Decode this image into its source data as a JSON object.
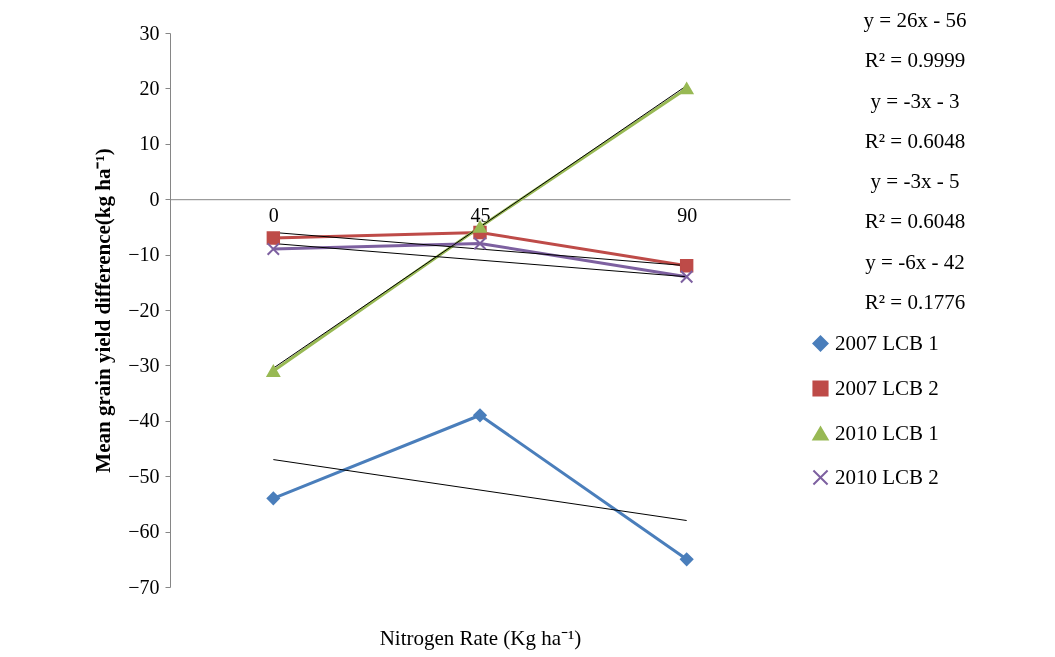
{
  "chart_data": {
    "type": "line",
    "xlabel": "Nitrogen Rate (Kg ha⁻¹)",
    "ylabel": "Mean grain yield difference(kg ha⁻¹)",
    "categories": [
      "0",
      "45",
      "90"
    ],
    "ylim": [
      -70,
      30
    ],
    "yticks": [
      -70,
      -60,
      -50,
      -40,
      -30,
      -20,
      -10,
      0,
      10,
      20,
      30
    ],
    "grid": false,
    "legend": "right",
    "series": [
      {
        "name": "2007 LCB 1",
        "color": "#4a7ebb",
        "marker": "diamond",
        "values": [
          -54,
          -39,
          -65
        ]
      },
      {
        "name": "2007 LCB 2",
        "color": "#be4b48",
        "marker": "square",
        "values": [
          -7,
          -6,
          -12
        ]
      },
      {
        "name": "2010 LCB 1",
        "color": "#98b954",
        "marker": "triangle",
        "values": [
          -31,
          -5,
          20
        ]
      },
      {
        "name": "2010 LCB 2",
        "color": "#7d60a0",
        "marker": "cross",
        "values": [
          -9,
          -8,
          -14
        ]
      },
      {
        "color": "#000000",
        "marker": "none",
        "values": [
          -47,
          -52.5,
          -58
        ]
      },
      {
        "color": "#000000",
        "marker": "none",
        "values": [
          -6,
          -9,
          -12
        ]
      },
      {
        "color": "#000000",
        "marker": "none",
        "values": [
          -30.5,
          -5,
          20.5
        ]
      },
      {
        "color": "#000000",
        "marker": "none",
        "values": [
          -8,
          -11,
          -14
        ]
      }
    ],
    "annotations": [
      "y = 26x - 56",
      "R² = 0.9999",
      "y = -3x - 3",
      "R² = 0.6048",
      "y = -3x - 5",
      "R² = 0.6048",
      "y = -6x - 42",
      "R² = 0.1776"
    ]
  }
}
